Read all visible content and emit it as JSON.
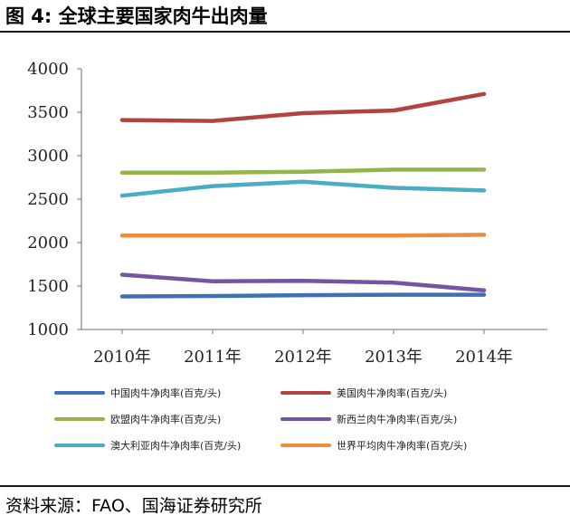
{
  "figure": {
    "title": "图 4:  全球主要国家肉牛出肉量",
    "source": "资料来源：FAO、国海证券研究所"
  },
  "chart_data": {
    "type": "line",
    "title": "",
    "xlabel": "",
    "ylabel": "",
    "categories": [
      "2010年",
      "2011年",
      "2012年",
      "2013年",
      "2014年"
    ],
    "ylim": [
      1000,
      4000
    ],
    "yticks": [
      1000,
      1500,
      2000,
      2500,
      3000,
      3500,
      4000
    ],
    "grid": false,
    "legend_position": "bottom",
    "series": [
      {
        "name": "中国肉牛净肉率(百克/头)",
        "color": "#3E72B5",
        "values": [
          1380,
          1385,
          1395,
          1400,
          1400
        ]
      },
      {
        "name": "美国肉牛净肉率(百克/头)",
        "color": "#B2443F",
        "values": [
          3410,
          3400,
          3490,
          3520,
          3710
        ]
      },
      {
        "name": "欧盟肉牛净肉率(百克/头)",
        "color": "#94B54A",
        "values": [
          2805,
          2805,
          2815,
          2840,
          2840
        ]
      },
      {
        "name": "新西兰肉牛净肉率(百克/头)",
        "color": "#7554A1",
        "values": [
          1630,
          1555,
          1560,
          1540,
          1450
        ]
      },
      {
        "name": "澳大利亚肉牛净肉率(百克/头)",
        "color": "#4AACC5",
        "values": [
          2540,
          2650,
          2700,
          2630,
          2600
        ]
      },
      {
        "name": "世界平均肉牛净肉率(百克/头)",
        "color": "#EA8E3C",
        "values": [
          2080,
          2080,
          2080,
          2080,
          2090
        ]
      }
    ]
  }
}
